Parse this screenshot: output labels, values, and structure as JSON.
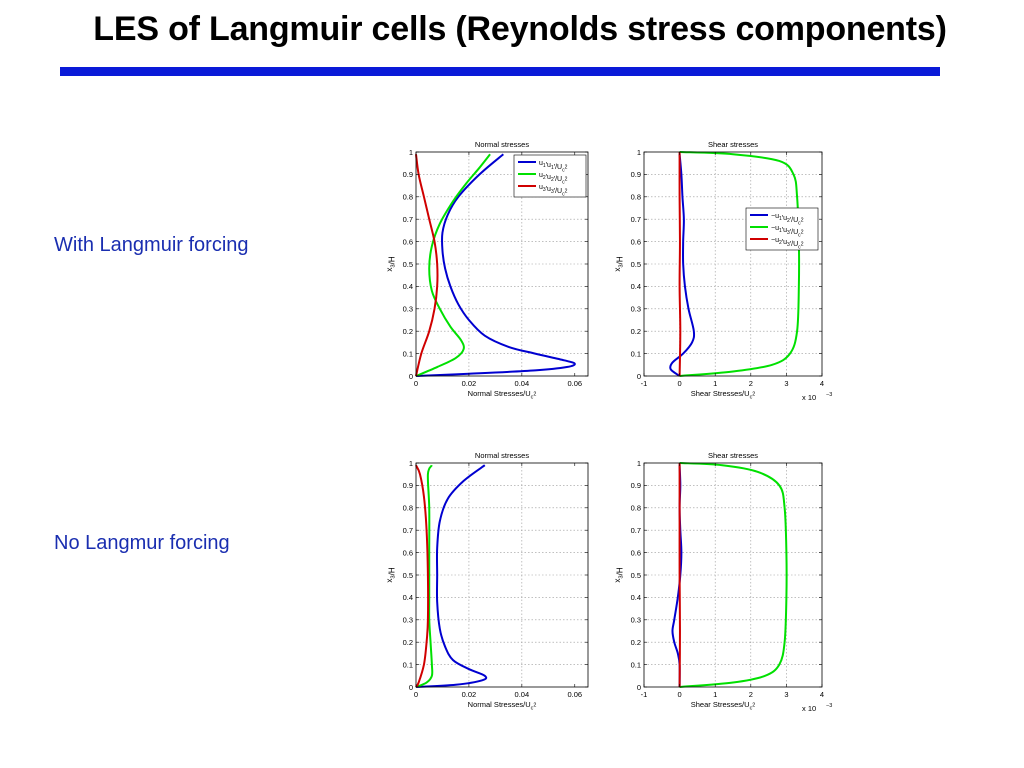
{
  "slide": {
    "title": "LES of Langmuir cells (Reynolds stress components)",
    "row_labels": [
      "With Langmuir forcing",
      "No Langmur forcing"
    ]
  },
  "colors": {
    "title_rule": "#0a1ad8",
    "row_label": "#1a2eb0",
    "series_blue": "#0000d0",
    "series_green": "#00e000",
    "series_red": "#d00000"
  },
  "chart_data": [
    {
      "id": "normal-forced",
      "type": "line",
      "title": "Normal stresses",
      "xlabel": "Normal Stresses/U_c^2",
      "ylabel": "x_3/H",
      "xlim": [
        0,
        0.065
      ],
      "ylim": [
        0,
        1
      ],
      "xticks": [
        0,
        0.02,
        0.04,
        0.06
      ],
      "xticklabels": [
        "0",
        "0.02",
        "0.04",
        "0.06"
      ],
      "yticks": [
        0,
        0.1,
        0.2,
        0.3,
        0.4,
        0.5,
        0.6,
        0.7,
        0.8,
        0.9,
        1
      ],
      "yticklabels": [
        "0",
        "0.1",
        "0.2",
        "0.3",
        "0.4",
        "0.5",
        "0.6",
        "0.7",
        "0.8",
        "0.9",
        "1"
      ],
      "grid": true,
      "legend": "top-right",
      "series": [
        {
          "name": "u1'u1'/Uc^2",
          "color": "#0000d0",
          "x": [
            0.0,
            0.02,
            0.045,
            0.057,
            0.06,
            0.056,
            0.045,
            0.035,
            0.026,
            0.02,
            0.016,
            0.013,
            0.011,
            0.01,
            0.01,
            0.012,
            0.016,
            0.024,
            0.033
          ],
          "y": [
            0.0,
            0.01,
            0.025,
            0.04,
            0.055,
            0.07,
            0.1,
            0.13,
            0.18,
            0.25,
            0.32,
            0.4,
            0.48,
            0.56,
            0.64,
            0.72,
            0.8,
            0.9,
            0.99
          ]
        },
        {
          "name": "u2'u2'/Uc^2",
          "color": "#00e000",
          "x": [
            0.0,
            0.008,
            0.015,
            0.018,
            0.017,
            0.013,
            0.009,
            0.006,
            0.005,
            0.006,
            0.009,
            0.014,
            0.019,
            0.024,
            0.028
          ],
          "y": [
            0.0,
            0.04,
            0.08,
            0.12,
            0.16,
            0.22,
            0.3,
            0.38,
            0.48,
            0.58,
            0.68,
            0.78,
            0.86,
            0.93,
            0.99
          ]
        },
        {
          "name": "u3'u3'/Uc^2",
          "color": "#d00000",
          "x": [
            0.0,
            0.002,
            0.005,
            0.007,
            0.008,
            0.008,
            0.007,
            0.005,
            0.003,
            0.001,
            0.0
          ],
          "y": [
            0.0,
            0.1,
            0.2,
            0.3,
            0.4,
            0.5,
            0.6,
            0.7,
            0.8,
            0.9,
            0.99
          ]
        }
      ]
    },
    {
      "id": "shear-forced",
      "type": "line",
      "title": "Shear stresses",
      "xlabel": "Shear Stresses/U_c^2",
      "ylabel": "x_3/H",
      "xscale_label": "x 10^-3",
      "xlim": [
        -1,
        4
      ],
      "ylim": [
        0,
        1
      ],
      "xticks": [
        -1,
        0,
        1,
        2,
        3,
        4
      ],
      "xticklabels": [
        "-1",
        "0",
        "1",
        "2",
        "3",
        "4"
      ],
      "yticks": [
        0,
        0.1,
        0.2,
        0.3,
        0.4,
        0.5,
        0.6,
        0.7,
        0.8,
        0.9,
        1
      ],
      "yticklabels": [
        "0",
        "0.1",
        "0.2",
        "0.3",
        "0.4",
        "0.5",
        "0.6",
        "0.7",
        "0.8",
        "0.9",
        "1"
      ],
      "grid": true,
      "legend": "center-right",
      "series": [
        {
          "name": "-u1'u2'/Uc^2",
          "color": "#0000d0",
          "x": [
            0.0,
            -0.25,
            -0.2,
            0.1,
            0.35,
            0.4,
            0.25,
            0.15,
            0.1,
            0.1,
            0.12,
            0.08,
            0.05,
            0.0
          ],
          "y": [
            0.0,
            0.03,
            0.06,
            0.1,
            0.15,
            0.2,
            0.3,
            0.4,
            0.5,
            0.6,
            0.7,
            0.8,
            0.9,
            0.99
          ]
        },
        {
          "name": "-u1'u3'/Uc^2",
          "color": "#00e000",
          "x": [
            0.0,
            1.5,
            2.6,
            3.1,
            3.3,
            3.35,
            3.35,
            3.3,
            3.2,
            2.8,
            1.5,
            0.0
          ],
          "y": [
            0.0,
            0.02,
            0.05,
            0.1,
            0.2,
            0.4,
            0.6,
            0.8,
            0.9,
            0.96,
            0.99,
            1.0
          ]
        },
        {
          "name": "-u2'u3'/Uc^2",
          "color": "#d00000",
          "x": [
            0.0,
            0.02,
            0.0,
            0.01,
            0.0,
            0.0
          ],
          "y": [
            0.0,
            0.2,
            0.4,
            0.6,
            0.8,
            1.0
          ]
        }
      ]
    },
    {
      "id": "normal-unforced",
      "type": "line",
      "title": "Normal stresses",
      "xlabel": "Normal Stresses/U_c^2",
      "ylabel": "x_3/H",
      "xlim": [
        0,
        0.065
      ],
      "ylim": [
        0,
        1
      ],
      "xticks": [
        0,
        0.02,
        0.04,
        0.06
      ],
      "xticklabels": [
        "0",
        "0.02",
        "0.04",
        "0.06"
      ],
      "yticks": [
        0,
        0.1,
        0.2,
        0.3,
        0.4,
        0.5,
        0.6,
        0.7,
        0.8,
        0.9,
        1
      ],
      "yticklabels": [
        "0",
        "0.1",
        "0.2",
        "0.3",
        "0.4",
        "0.5",
        "0.6",
        "0.7",
        "0.8",
        "0.9",
        "1"
      ],
      "grid": true,
      "series": [
        {
          "color": "#0000d0",
          "x": [
            0.0,
            0.015,
            0.025,
            0.026,
            0.02,
            0.014,
            0.011,
            0.009,
            0.008,
            0.008,
            0.008,
            0.009,
            0.012,
            0.018,
            0.026
          ],
          "y": [
            0.0,
            0.01,
            0.03,
            0.05,
            0.08,
            0.12,
            0.18,
            0.26,
            0.38,
            0.5,
            0.62,
            0.74,
            0.84,
            0.92,
            0.99
          ]
        },
        {
          "color": "#00e000",
          "x": [
            0.0,
            0.004,
            0.006,
            0.006,
            0.0055,
            0.005,
            0.005,
            0.005,
            0.005,
            0.005,
            0.0045,
            0.006
          ],
          "y": [
            0.0,
            0.02,
            0.05,
            0.1,
            0.2,
            0.3,
            0.4,
            0.5,
            0.6,
            0.8,
            0.95,
            0.99
          ]
        },
        {
          "color": "#d00000",
          "x": [
            0.0,
            0.001,
            0.003,
            0.004,
            0.0045,
            0.0045,
            0.004,
            0.003,
            0.0015,
            0.0
          ],
          "y": [
            0.0,
            0.02,
            0.1,
            0.2,
            0.3,
            0.5,
            0.7,
            0.85,
            0.95,
            0.99
          ]
        }
      ]
    },
    {
      "id": "shear-unforced",
      "type": "line",
      "title": "Shear stresses",
      "xlabel": "Shear Stresses/U_c^2",
      "ylabel": "x_3/H",
      "xscale_label": "x 10^-3",
      "xlim": [
        -1,
        4
      ],
      "ylim": [
        0,
        1
      ],
      "xticks": [
        -1,
        0,
        1,
        2,
        3,
        4
      ],
      "xticklabels": [
        "-1",
        "0",
        "1",
        "2",
        "3",
        "4"
      ],
      "yticks": [
        0,
        0.1,
        0.2,
        0.3,
        0.4,
        0.5,
        0.6,
        0.7,
        0.8,
        0.9,
        1
      ],
      "yticklabels": [
        "0",
        "0.1",
        "0.2",
        "0.3",
        "0.4",
        "0.5",
        "0.6",
        "0.7",
        "0.8",
        "0.9",
        "1"
      ],
      "grid": true,
      "series": [
        {
          "color": "#0000d0",
          "x": [
            0.0,
            0.0,
            -0.05,
            -0.15,
            -0.2,
            -0.15,
            -0.05,
            0.02,
            0.05,
            0.02,
            0.0,
            0.02,
            0.0
          ],
          "y": [
            0.0,
            0.1,
            0.15,
            0.2,
            0.25,
            0.3,
            0.4,
            0.5,
            0.6,
            0.7,
            0.8,
            0.9,
            0.99
          ]
        },
        {
          "color": "#00e000",
          "x": [
            0.0,
            1.5,
            2.4,
            2.8,
            2.95,
            3.0,
            3.0,
            2.95,
            2.8,
            2.2,
            1.2,
            0.0
          ],
          "y": [
            0.0,
            0.02,
            0.05,
            0.1,
            0.2,
            0.4,
            0.6,
            0.8,
            0.9,
            0.96,
            0.99,
            1.0
          ]
        },
        {
          "color": "#d00000",
          "x": [
            0.0,
            0.01,
            0.0,
            0.0,
            0.0
          ],
          "y": [
            0.0,
            0.25,
            0.5,
            0.75,
            1.0
          ]
        }
      ]
    }
  ]
}
